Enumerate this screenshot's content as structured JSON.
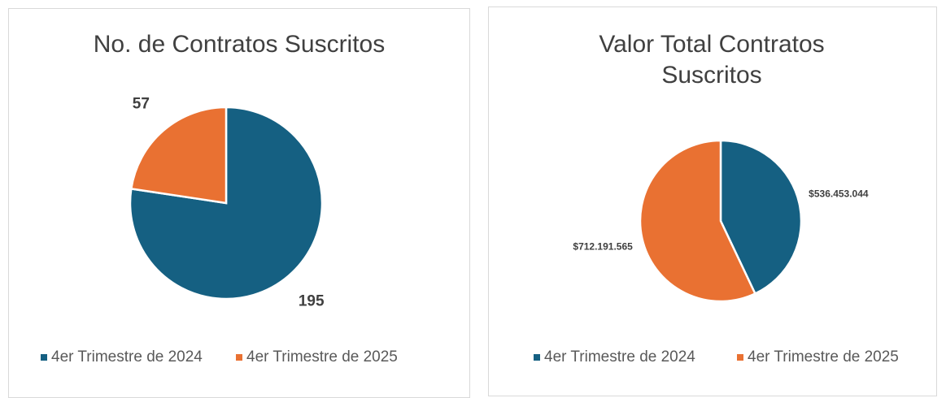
{
  "chart_data": [
    {
      "type": "pie",
      "title": "No. de Contratos Suscritos",
      "categories": [
        "4er Trimestre de 2024",
        "4er Trimestre de 2025"
      ],
      "values": [
        195,
        57
      ],
      "colors": [
        "#156082",
        "#e97132"
      ],
      "legend": "bottom"
    },
    {
      "type": "pie",
      "title": "Valor Total Contratos Suscritos",
      "categories": [
        "4er Trimestre de 2024",
        "4er Trimestre de 2025"
      ],
      "values": [
        536453044,
        712191565
      ],
      "value_labels": [
        "$536.453.044",
        "$712.191.565"
      ],
      "colors": [
        "#156082",
        "#e97132"
      ],
      "legend": "bottom"
    }
  ]
}
